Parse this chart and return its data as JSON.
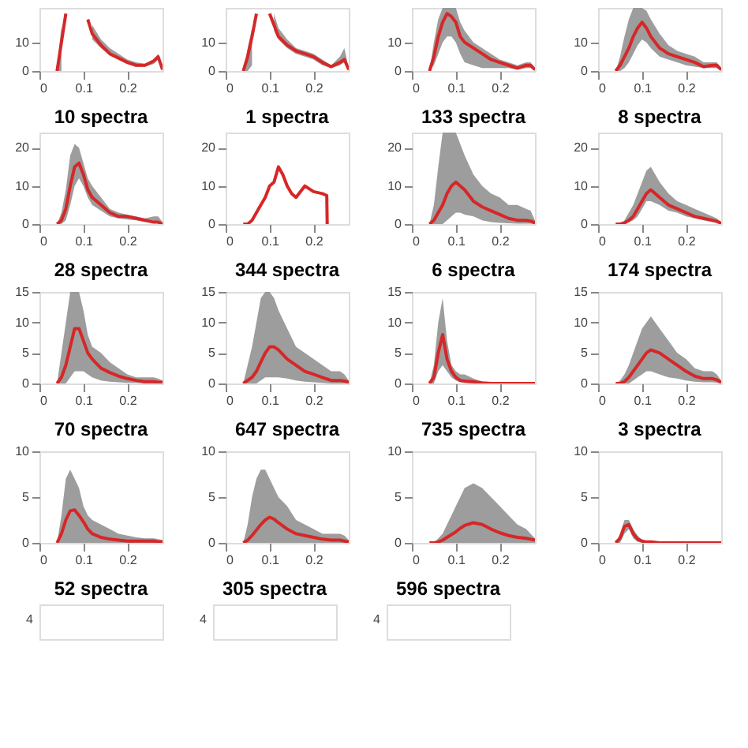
{
  "chart_data": [
    {
      "type": "line",
      "x": [
        0.04,
        0.05,
        0.06,
        0.07,
        0.08,
        0.09,
        0.1,
        0.11,
        0.12,
        0.14,
        0.16,
        0.18,
        0.2,
        0.22,
        0.24,
        0.26,
        0.27,
        0.28
      ],
      "xlim": [
        0,
        0.28
      ],
      "xticks": [
        0,
        0.1,
        0.2
      ],
      "ylim": [
        0,
        22
      ],
      "yticks": [
        0,
        10
      ],
      "series": [
        {
          "color": "#d62728",
          "values": [
            0,
            10,
            20,
            null,
            null,
            null,
            null,
            18,
            13,
            9,
            6,
            4.5,
            3,
            2,
            2,
            3.5,
            5,
            0.5
          ],
          "lower": [
            0,
            0,
            null,
            null,
            null,
            null,
            null,
            null,
            11,
            8,
            5.5,
            4,
            2.5,
            1.5,
            1.5,
            2.5,
            4,
            0
          ],
          "upper": [
            0,
            16,
            null,
            null,
            null,
            null,
            null,
            null,
            16,
            11,
            8,
            6,
            4,
            3,
            2.5,
            4,
            6,
            1
          ]
        }
      ]
    },
    {
      "type": "line",
      "x": [
        0.04,
        0.05,
        0.06,
        0.07,
        0.08,
        0.09,
        0.1,
        0.11,
        0.12,
        0.14,
        0.16,
        0.18,
        0.2,
        0.22,
        0.24,
        0.26,
        0.27,
        0.28
      ],
      "xlim": [
        0,
        0.28
      ],
      "xticks": [
        0,
        0.1,
        0.2
      ],
      "ylim": [
        0,
        22
      ],
      "yticks": [
        0,
        10
      ],
      "series": [
        {
          "color": "#d62728",
          "values": [
            0,
            5,
            12,
            20,
            null,
            null,
            20,
            16,
            12,
            9,
            7,
            6,
            5,
            3,
            1.5,
            3,
            4,
            0.5
          ],
          "lower": [
            0,
            0,
            2,
            null,
            null,
            null,
            null,
            14,
            11,
            8,
            6,
            5,
            4,
            2,
            1,
            2,
            3,
            0
          ],
          "upper": [
            0,
            8,
            15,
            null,
            null,
            null,
            null,
            20,
            15,
            11,
            8,
            7,
            6,
            4,
            2,
            5,
            8,
            1
          ]
        }
      ]
    },
    {
      "type": "line",
      "x": [
        0.04,
        0.05,
        0.06,
        0.07,
        0.08,
        0.09,
        0.1,
        0.11,
        0.12,
        0.14,
        0.16,
        0.18,
        0.2,
        0.22,
        0.24,
        0.26,
        0.27,
        0.28
      ],
      "xlim": [
        0,
        0.28
      ],
      "xticks": [
        0,
        0.1,
        0.2
      ],
      "ylim": [
        0,
        22
      ],
      "yticks": [
        0,
        10
      ],
      "series": [
        {
          "color": "#d62728",
          "values": [
            0,
            5,
            12,
            17,
            20,
            19,
            17,
            12,
            10,
            8,
            6,
            4,
            3,
            2,
            1,
            2,
            2,
            0.5
          ],
          "lower": [
            0,
            2,
            6,
            10,
            12,
            12,
            10,
            6,
            3,
            2,
            1,
            1,
            1,
            1,
            0.5,
            1,
            1,
            0
          ],
          "upper": [
            0,
            10,
            18,
            22,
            22,
            22,
            22,
            17,
            14,
            10,
            8,
            6,
            4,
            3,
            2,
            3,
            3,
            1
          ]
        }
      ]
    },
    {
      "type": "line",
      "x": [
        0.04,
        0.05,
        0.06,
        0.07,
        0.08,
        0.09,
        0.1,
        0.11,
        0.12,
        0.14,
        0.16,
        0.18,
        0.2,
        0.22,
        0.24,
        0.26,
        0.27,
        0.28
      ],
      "xlim": [
        0,
        0.28
      ],
      "xticks": [
        0,
        0.1,
        0.2
      ],
      "ylim": [
        0,
        22
      ],
      "yticks": [
        0,
        10
      ],
      "series": [
        {
          "color": "#d62728",
          "values": [
            0,
            2,
            5,
            8,
            12,
            15,
            17,
            15,
            12,
            8,
            6,
            5,
            4,
            3,
            1.5,
            2,
            2,
            0.5
          ],
          "lower": [
            0,
            0,
            1,
            3,
            6,
            9,
            11,
            10,
            8,
            5,
            4,
            3,
            2,
            1.5,
            1,
            1,
            1,
            0
          ],
          "upper": [
            0,
            5,
            12,
            18,
            22,
            22,
            22,
            21,
            18,
            13,
            9,
            7,
            6,
            5,
            3,
            3,
            3,
            1
          ]
        }
      ]
    },
    {
      "type": "line",
      "title": "10 spectra",
      "x": [
        0.04,
        0.05,
        0.06,
        0.07,
        0.08,
        0.09,
        0.1,
        0.11,
        0.12,
        0.14,
        0.16,
        0.18,
        0.2,
        0.22,
        0.24,
        0.26,
        0.27,
        0.28
      ],
      "xlim": [
        0,
        0.28
      ],
      "xticks": [
        0,
        0.1,
        0.2
      ],
      "ylim": [
        0,
        24
      ],
      "yticks": [
        0,
        10,
        20
      ],
      "series": [
        {
          "color": "#d62728",
          "values": [
            0,
            1,
            4,
            10,
            15,
            16,
            13,
            9,
            7,
            5,
            3,
            2,
            2,
            1.5,
            1,
            0.5,
            0.5,
            0
          ],
          "lower": [
            0,
            0,
            1,
            5,
            10,
            12,
            10,
            7,
            5,
            3.5,
            2,
            1.5,
            1.2,
            1,
            0.5,
            0.3,
            0.2,
            0
          ],
          "upper": [
            0,
            3,
            9,
            18,
            21,
            20,
            16,
            12,
            10,
            7,
            4,
            3,
            2.5,
            2,
            1.5,
            2,
            2,
            0.5
          ]
        }
      ]
    },
    {
      "type": "line",
      "title": "1 spectra",
      "x": [
        0.04,
        0.05,
        0.06,
        0.07,
        0.08,
        0.09,
        0.1,
        0.11,
        0.12,
        0.13,
        0.14,
        0.15,
        0.16,
        0.17,
        0.18,
        0.2,
        0.22,
        0.23,
        0.231
      ],
      "xlim": [
        0,
        0.28
      ],
      "xticks": [
        0,
        0.1,
        0.2
      ],
      "ylim": [
        0,
        24
      ],
      "yticks": [
        0,
        10,
        20
      ],
      "series": [
        {
          "color": "#d62728",
          "values": [
            0,
            0,
            1,
            3,
            5,
            7,
            10,
            11,
            15,
            13,
            10,
            8,
            7,
            8.5,
            10,
            8.5,
            8,
            7.5,
            0
          ]
        }
      ]
    },
    {
      "type": "line",
      "title": "133 spectra",
      "x": [
        0.04,
        0.05,
        0.06,
        0.07,
        0.08,
        0.09,
        0.1,
        0.11,
        0.12,
        0.14,
        0.16,
        0.18,
        0.2,
        0.22,
        0.24,
        0.26,
        0.27,
        0.28
      ],
      "xlim": [
        0,
        0.28
      ],
      "xticks": [
        0,
        0.1,
        0.2
      ],
      "ylim": [
        0,
        24
      ],
      "yticks": [
        0,
        10,
        20
      ],
      "series": [
        {
          "color": "#d62728",
          "values": [
            0,
            1,
            3,
            5,
            8,
            10,
            11,
            10,
            9,
            6,
            4.5,
            3.5,
            2.5,
            1.5,
            1,
            1,
            0.8,
            0.3
          ],
          "lower": [
            0,
            0,
            0,
            0,
            1,
            2,
            3,
            3,
            2.5,
            2,
            1,
            0.5,
            0.3,
            0.2,
            0.1,
            0.1,
            0.1,
            0
          ],
          "upper": [
            0,
            5,
            15,
            24,
            24,
            24,
            24,
            21,
            18,
            13,
            10,
            8,
            7,
            5,
            5,
            4,
            3.5,
            1
          ]
        }
      ]
    },
    {
      "type": "line",
      "title": "8 spectra",
      "x": [
        0.04,
        0.05,
        0.06,
        0.07,
        0.08,
        0.09,
        0.1,
        0.11,
        0.12,
        0.14,
        0.16,
        0.18,
        0.2,
        0.22,
        0.24,
        0.26,
        0.27,
        0.28
      ],
      "xlim": [
        0,
        0.28
      ],
      "xticks": [
        0,
        0.1,
        0.2
      ],
      "ylim": [
        0,
        24
      ],
      "yticks": [
        0,
        10,
        20
      ],
      "series": [
        {
          "color": "#d62728",
          "values": [
            0,
            0,
            0.3,
            1,
            2,
            4,
            6,
            8,
            9,
            7,
            5,
            4,
            3,
            2,
            1.5,
            1,
            0.7,
            0.2
          ],
          "lower": [
            0,
            0,
            0,
            0.5,
            1,
            2,
            4,
            6,
            6,
            5,
            3.5,
            3,
            2,
            1.5,
            1,
            0.5,
            0.3,
            0
          ],
          "upper": [
            0,
            0,
            1,
            3,
            5,
            8,
            11,
            14,
            15,
            11,
            8,
            6,
            5,
            4,
            3,
            2,
            1.5,
            0.5
          ]
        }
      ]
    },
    {
      "type": "line",
      "title": "28 spectra",
      "x": [
        0.04,
        0.05,
        0.06,
        0.07,
        0.08,
        0.09,
        0.1,
        0.11,
        0.12,
        0.14,
        0.16,
        0.18,
        0.2,
        0.22,
        0.24,
        0.26,
        0.27,
        0.28
      ],
      "xlim": [
        0,
        0.28
      ],
      "xticks": [
        0,
        0.1,
        0.2
      ],
      "ylim": [
        0,
        15
      ],
      "yticks": [
        0,
        5,
        10,
        15
      ],
      "series": [
        {
          "color": "#d62728",
          "values": [
            0,
            1,
            3,
            6,
            9,
            9,
            7,
            5,
            4,
            2.5,
            1.8,
            1.2,
            0.8,
            0.5,
            0.3,
            0.3,
            0.2,
            0.2
          ],
          "lower": [
            0,
            0,
            0,
            1,
            2,
            2,
            2,
            1.5,
            1,
            0.5,
            0.3,
            0.2,
            0.1,
            0.1,
            0,
            0,
            0,
            0
          ],
          "upper": [
            0,
            5,
            10,
            15,
            15,
            15,
            12,
            8,
            6,
            5,
            3.5,
            2.5,
            1.5,
            1,
            1,
            1,
            0.8,
            0.5
          ]
        }
      ]
    },
    {
      "type": "line",
      "title": "344 spectra",
      "x": [
        0.04,
        0.05,
        0.06,
        0.07,
        0.08,
        0.09,
        0.1,
        0.11,
        0.12,
        0.14,
        0.16,
        0.18,
        0.2,
        0.22,
        0.24,
        0.26,
        0.27,
        0.28
      ],
      "xlim": [
        0,
        0.28
      ],
      "xticks": [
        0,
        0.1,
        0.2
      ],
      "ylim": [
        0,
        15
      ],
      "yticks": [
        0,
        5,
        10,
        15
      ],
      "series": [
        {
          "color": "#d62728",
          "values": [
            0,
            0.5,
            1,
            2,
            3.5,
            5,
            6,
            6,
            5.5,
            4,
            3,
            2,
            1.5,
            1,
            0.5,
            0.5,
            0.4,
            0.2
          ],
          "lower": [
            0,
            0,
            0,
            0,
            0.5,
            1,
            1,
            1,
            1,
            0.8,
            0.5,
            0.3,
            0.2,
            0.1,
            0,
            0,
            0,
            0
          ],
          "upper": [
            0,
            3,
            6,
            10,
            14,
            15,
            15,
            14,
            12,
            9,
            6,
            5,
            4,
            3,
            2,
            2,
            1.5,
            0.5
          ]
        }
      ]
    },
    {
      "type": "line",
      "title": "6 spectra",
      "x": [
        0.04,
        0.05,
        0.06,
        0.07,
        0.08,
        0.09,
        0.1,
        0.11,
        0.12,
        0.14,
        0.16,
        0.18,
        0.2,
        0.22,
        0.24,
        0.26,
        0.27,
        0.28
      ],
      "xlim": [
        0,
        0.28
      ],
      "xticks": [
        0,
        0.1,
        0.2
      ],
      "ylim": [
        0,
        15
      ],
      "yticks": [
        0,
        5,
        10,
        15
      ],
      "series": [
        {
          "color": "#d62728",
          "values": [
            0,
            1,
            5,
            8,
            4,
            2,
            1,
            0.5,
            0.4,
            0.3,
            0.1,
            0,
            0,
            0,
            0,
            0,
            0,
            0
          ],
          "lower": [
            0,
            0,
            2,
            3,
            2,
            1,
            0.5,
            0.2,
            0.1,
            0,
            0,
            0,
            0,
            0,
            0,
            0,
            0,
            0
          ],
          "upper": [
            0,
            3,
            10,
            14,
            7,
            3,
            2,
            1.5,
            1.5,
            0.8,
            0.3,
            0.1,
            0,
            0,
            0,
            0,
            0,
            0
          ]
        }
      ]
    },
    {
      "type": "line",
      "title": "174 spectra",
      "x": [
        0.04,
        0.05,
        0.06,
        0.07,
        0.08,
        0.09,
        0.1,
        0.11,
        0.12,
        0.14,
        0.16,
        0.18,
        0.2,
        0.22,
        0.24,
        0.26,
        0.27,
        0.28
      ],
      "xlim": [
        0,
        0.28
      ],
      "xticks": [
        0,
        0.1,
        0.2
      ],
      "ylim": [
        0,
        15
      ],
      "yticks": [
        0,
        5,
        10,
        15
      ],
      "series": [
        {
          "color": "#d62728",
          "values": [
            0,
            0,
            0.3,
            1,
            2,
            3,
            4,
            5,
            5.5,
            5,
            4,
            3,
            2,
            1.2,
            0.8,
            0.8,
            0.6,
            0.2
          ],
          "lower": [
            0,
            0,
            0,
            0,
            0.5,
            1,
            1.5,
            2,
            2,
            1.5,
            1,
            0.8,
            0.5,
            0.3,
            0.2,
            0.2,
            0.1,
            0
          ],
          "upper": [
            0,
            0.5,
            1.5,
            3,
            5,
            7,
            9,
            10,
            11,
            9,
            7,
            5,
            4,
            2.5,
            2,
            2,
            1.5,
            0.5
          ]
        }
      ]
    },
    {
      "type": "line",
      "title": "70 spectra",
      "x": [
        0.04,
        0.05,
        0.06,
        0.07,
        0.08,
        0.09,
        0.1,
        0.11,
        0.12,
        0.14,
        0.16,
        0.18,
        0.2,
        0.22,
        0.24,
        0.26,
        0.27,
        0.28
      ],
      "xlim": [
        0,
        0.28
      ],
      "xticks": [
        0,
        0.1,
        0.2
      ],
      "ylim": [
        0,
        10
      ],
      "yticks": [
        0,
        5,
        10
      ],
      "series": [
        {
          "color": "#d62728",
          "values": [
            0,
            1,
            2.5,
            3.5,
            3.6,
            3,
            2.3,
            1.5,
            1,
            0.6,
            0.4,
            0.3,
            0.2,
            0.2,
            0.2,
            0.2,
            0.1,
            0.1
          ],
          "lower": [
            0,
            0,
            0,
            0,
            0,
            0,
            0,
            0,
            0,
            0,
            0,
            0,
            0,
            0,
            0,
            0,
            0,
            0
          ],
          "upper": [
            0,
            3,
            7,
            8,
            7,
            6,
            4,
            3,
            2.5,
            2,
            1.5,
            1,
            0.8,
            0.6,
            0.5,
            0.5,
            0.4,
            0.3
          ]
        }
      ]
    },
    {
      "type": "line",
      "title": "647 spectra",
      "x": [
        0.04,
        0.05,
        0.06,
        0.07,
        0.08,
        0.09,
        0.1,
        0.11,
        0.12,
        0.14,
        0.16,
        0.18,
        0.2,
        0.22,
        0.24,
        0.26,
        0.27,
        0.28
      ],
      "xlim": [
        0,
        0.28
      ],
      "xticks": [
        0,
        0.1,
        0.2
      ],
      "ylim": [
        0,
        10
      ],
      "yticks": [
        0,
        5,
        10
      ],
      "series": [
        {
          "color": "#d62728",
          "values": [
            0,
            0.3,
            0.8,
            1.4,
            2,
            2.5,
            2.8,
            2.6,
            2.2,
            1.5,
            1,
            0.8,
            0.6,
            0.4,
            0.3,
            0.3,
            0.2,
            0.1
          ],
          "lower": [
            0,
            0,
            0,
            0,
            0,
            0,
            0,
            0,
            0,
            0,
            0,
            0,
            0,
            0,
            0,
            0,
            0,
            0
          ],
          "upper": [
            0,
            2,
            5,
            7,
            8,
            8,
            7,
            6,
            5,
            4,
            2.5,
            2,
            1.5,
            1,
            1,
            1,
            0.8,
            0.3
          ]
        }
      ]
    },
    {
      "type": "line",
      "title": "735 spectra",
      "x": [
        0.04,
        0.05,
        0.06,
        0.07,
        0.08,
        0.09,
        0.1,
        0.11,
        0.12,
        0.14,
        0.16,
        0.18,
        0.2,
        0.22,
        0.24,
        0.26,
        0.27,
        0.28
      ],
      "xlim": [
        0,
        0.28
      ],
      "xticks": [
        0,
        0.1,
        0.2
      ],
      "ylim": [
        0,
        10
      ],
      "yticks": [
        0,
        5,
        10
      ],
      "series": [
        {
          "color": "#d62728",
          "values": [
            0,
            0,
            0.1,
            0.3,
            0.6,
            0.9,
            1.2,
            1.6,
            1.9,
            2.2,
            2,
            1.5,
            1.1,
            0.8,
            0.6,
            0.5,
            0.4,
            0.3
          ],
          "lower": [
            0,
            0,
            0,
            0,
            0,
            0,
            0,
            0,
            0,
            0,
            0,
            0,
            0,
            0,
            0,
            0,
            0,
            0
          ],
          "upper": [
            0,
            0,
            0.5,
            1,
            2,
            3,
            4,
            5,
            6,
            6.5,
            6,
            5,
            4,
            3,
            2,
            1.5,
            1,
            0.5
          ]
        }
      ]
    },
    {
      "type": "line",
      "title": "3 spectra",
      "x": [
        0.04,
        0.05,
        0.06,
        0.07,
        0.08,
        0.09,
        0.1,
        0.11,
        0.12,
        0.14,
        0.16,
        0.18,
        0.2,
        0.22,
        0.24,
        0.26,
        0.27,
        0.28
      ],
      "xlim": [
        0,
        0.28
      ],
      "xticks": [
        0,
        0.1,
        0.2
      ],
      "ylim": [
        0,
        10
      ],
      "yticks": [
        0,
        5,
        10
      ],
      "series": [
        {
          "color": "#d62728",
          "values": [
            0,
            0.5,
            1.8,
            2,
            1,
            0.4,
            0.2,
            0.1,
            0.1,
            0,
            0,
            0,
            0,
            0,
            0,
            0,
            0,
            0
          ],
          "lower": [
            0,
            0,
            1,
            1.5,
            0.5,
            0.1,
            0,
            0,
            0,
            0,
            0,
            0,
            0,
            0,
            0,
            0,
            0,
            0
          ],
          "upper": [
            0,
            1,
            2.5,
            2.5,
            1.5,
            0.8,
            0.3,
            0.2,
            0.1,
            0.1,
            0,
            0,
            0,
            0,
            0,
            0,
            0,
            0
          ]
        }
      ]
    },
    {
      "type": "other",
      "title": "52 spectra",
      "annotations": [
        "4"
      ]
    },
    {
      "type": "other",
      "title": "305 spectra",
      "annotations": [
        "4"
      ]
    },
    {
      "type": "other",
      "title": "596 spectra",
      "annotations": [
        "4"
      ]
    }
  ]
}
